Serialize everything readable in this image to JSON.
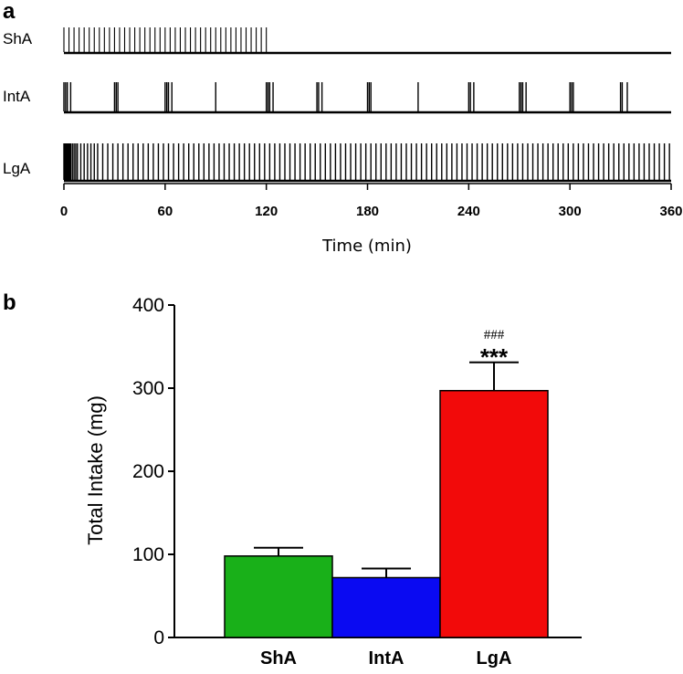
{
  "chart_data": [
    {
      "type": "event_raster",
      "panel_label": "a",
      "xlabel": "Time (min)",
      "xlim": [
        0,
        360
      ],
      "xticks": [
        "0",
        "60",
        "120",
        "180",
        "240",
        "300",
        "360"
      ],
      "rows": [
        {
          "name": "ShA",
          "events": [
            0,
            3,
            6,
            9,
            12,
            15,
            18,
            21,
            24,
            27,
            30,
            33,
            36,
            39,
            42,
            45,
            48,
            51,
            54,
            57,
            60,
            63,
            66,
            69,
            72,
            75,
            78,
            81,
            84,
            87,
            90,
            93,
            96,
            99,
            102,
            105,
            108,
            111,
            114,
            117,
            120
          ]
        },
        {
          "name": "IntA",
          "events": [
            0,
            1,
            2,
            4,
            30,
            31,
            32,
            60,
            61,
            62,
            64,
            90,
            120,
            121,
            122,
            124,
            150,
            151,
            153,
            180,
            181,
            182,
            210,
            240,
            241,
            243,
            270,
            271,
            272,
            274,
            300,
            301,
            302,
            330,
            331,
            334
          ]
        },
        {
          "name": "LgA",
          "events": [
            0,
            0.5,
            1,
            1.5,
            2,
            2.5,
            3,
            3.5,
            4,
            5,
            6,
            7,
            8,
            10,
            12,
            14,
            16,
            18,
            20,
            23,
            26,
            29,
            32,
            35,
            38,
            41,
            44,
            47,
            50,
            53,
            56,
            59,
            62,
            65,
            68,
            71,
            74,
            77,
            80,
            83,
            86,
            89,
            92,
            95,
            98,
            101,
            104,
            107,
            110,
            113,
            116,
            119,
            122,
            125,
            128,
            131,
            134,
            137,
            140,
            143,
            146,
            149,
            152,
            155,
            158,
            161,
            164,
            167,
            170,
            173,
            176,
            179,
            182,
            185,
            188,
            191,
            194,
            197,
            200,
            203,
            206,
            209,
            212,
            215,
            218,
            221,
            224,
            227,
            230,
            233,
            236,
            239,
            242,
            245,
            248,
            251,
            254,
            257,
            260,
            263,
            266,
            269,
            272,
            275,
            278,
            281,
            284,
            287,
            290,
            293,
            296,
            299,
            302,
            305,
            308,
            311,
            314,
            317,
            320,
            323,
            326,
            329,
            332,
            335,
            338,
            341,
            344,
            347,
            350,
            353,
            356,
            359
          ]
        }
      ]
    },
    {
      "type": "bar",
      "panel_label": "b",
      "ylabel": "Total Intake (mg)",
      "ylim": [
        0,
        400
      ],
      "yticks": [
        "0",
        "100",
        "200",
        "300",
        "400"
      ],
      "categories": [
        "ShA",
        "IntA",
        "LgA"
      ],
      "values": [
        98,
        72,
        297
      ],
      "errors": [
        10,
        11,
        34
      ],
      "colors": [
        "#19b019",
        "#0a0af2",
        "#f20a0a"
      ],
      "annotations": [
        {
          "category": "LgA",
          "hash": "###",
          "stars": "***"
        }
      ]
    }
  ]
}
